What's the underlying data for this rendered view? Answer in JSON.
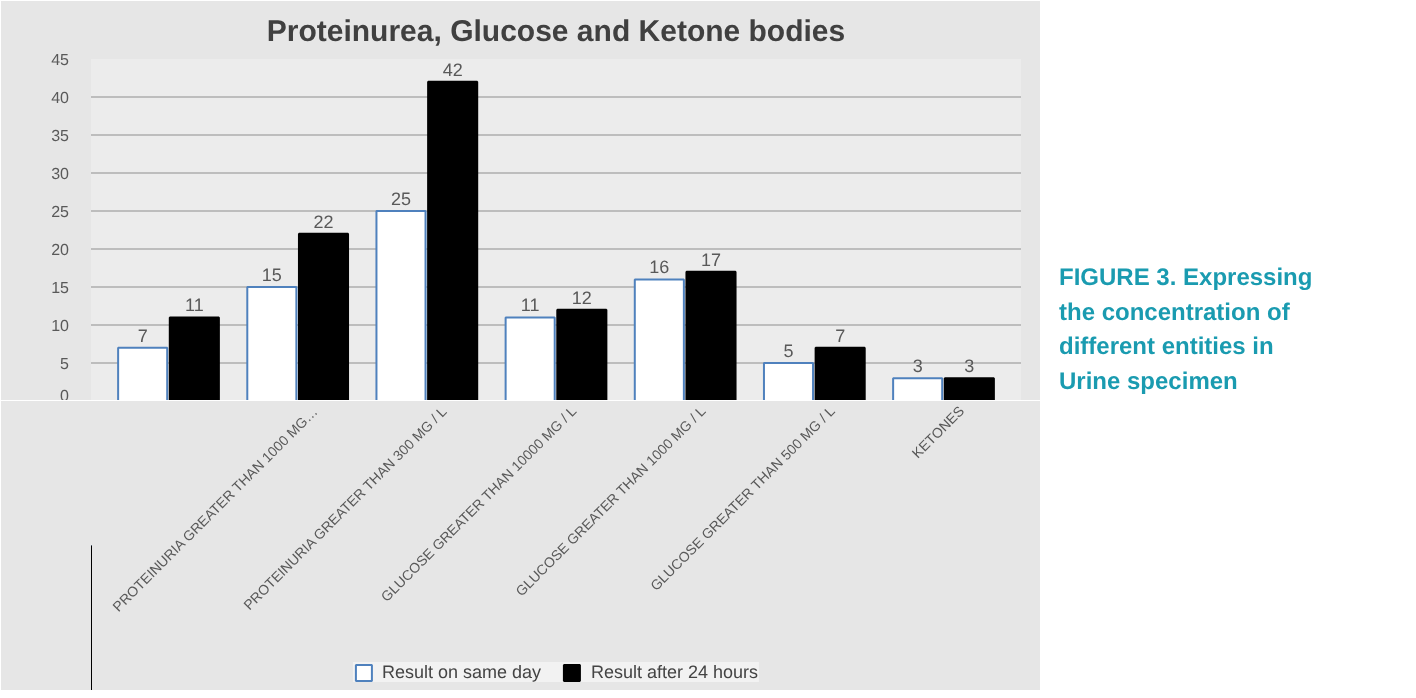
{
  "chart_data": {
    "type": "bar",
    "title": "Proteinurea, Glucose and Ketone bodies",
    "categories": [
      null,
      "PROTEINURIA GREATER THAN 1000 MG…",
      "PROTEINURIA GREATER THAN 300 MG / L",
      "GLUCOSE GREATER THAN 10000 MG / L",
      "GLUCOSE GREATER THAN 1000 MG / L",
      "GLUCOSE GREATER THAN 500 MG / L",
      "KETONES"
    ],
    "series": [
      {
        "name": "Result on same day",
        "color": "#ffffff",
        "values": [
          7,
          15,
          25,
          11,
          16,
          5,
          3
        ]
      },
      {
        "name": "Result after 24 hours",
        "color": "#000000",
        "values": [
          11,
          22,
          42,
          12,
          17,
          7,
          3
        ]
      }
    ],
    "ylim": [
      0,
      45
    ],
    "yticks": [
      0,
      5,
      10,
      15,
      20,
      25,
      30,
      35,
      40,
      45
    ],
    "grid": "y",
    "legend": "bottom",
    "data_labels": true,
    "annotations": [
      "FIGURE 3. Expressing the concentration of different entities in Urine specimen"
    ]
  }
}
